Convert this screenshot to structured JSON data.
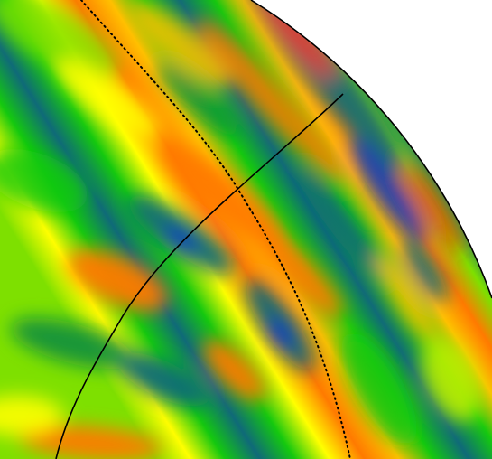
{
  "figure": {
    "kind": "contour-field",
    "background": "#ffffff",
    "colormap": [
      "#0a3fbf",
      "#0f6a78",
      "#0f8e3f",
      "#14c80f",
      "#7ee000",
      "#c8f000",
      "#ffff00",
      "#ffc000",
      "#ff7a00",
      "#ff2a00"
    ],
    "line_color": "#000000"
  }
}
